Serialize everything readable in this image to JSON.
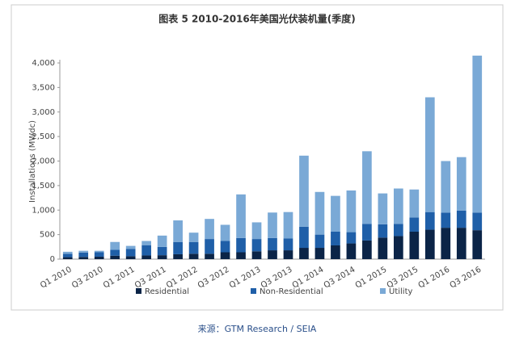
{
  "chart_data": {
    "type": "stacked_bar",
    "title": "图表 5  2010-2016年美国光伏装机量(季度)",
    "y_label": "Installations (MWdc)",
    "source": "来源：GTM Research / SEIA",
    "categories": [
      "Q1 2010",
      null,
      "Q3 2010",
      null,
      "Q1 2011",
      null,
      "Q3 2011",
      null,
      "Q1 2012",
      null,
      "Q3 2012",
      null,
      "Q1 2013",
      null,
      "Q3 2013",
      null,
      "Q1 2014",
      null,
      "Q3 2014",
      null,
      "Q1 2015",
      null,
      "Q3 2015",
      null,
      "Q1 2016",
      null,
      "Q3 2016"
    ],
    "series": [
      {
        "name": "Residential",
        "color": "#0b2447",
        "values": [
          40,
          45,
          50,
          70,
          60,
          75,
          80,
          100,
          110,
          110,
          140,
          140,
          160,
          180,
          180,
          230,
          230,
          280,
          320,
          380,
          440,
          470,
          560,
          600,
          640,
          640,
          590
        ]
      },
      {
        "name": "Non-Residential",
        "color": "#1f5fa8",
        "values": [
          70,
          90,
          90,
          120,
          150,
          210,
          170,
          250,
          240,
          300,
          230,
          290,
          250,
          250,
          240,
          430,
          270,
          280,
          230,
          340,
          270,
          250,
          290,
          360,
          310,
          350,
          360
        ]
      },
      {
        "name": "Utility",
        "color": "#7aa9d6",
        "values": [
          40,
          35,
          30,
          160,
          60,
          85,
          230,
          440,
          190,
          410,
          330,
          890,
          340,
          520,
          540,
          1450,
          870,
          730,
          850,
          1480,
          630,
          720,
          570,
          2340,
          1050,
          1090,
          3200
        ]
      }
    ],
    "ylim": [
      0,
      4000
    ],
    "yticks": [
      0,
      500,
      {
        "value": 1000,
        "label": "1,000"
      },
      {
        "value": 1500,
        "label": "1,500"
      },
      {
        "value": 2000,
        "label": "2,000"
      },
      {
        "value": 2500,
        "label": "2,500"
      },
      {
        "value": 3000,
        "label": "3,000"
      },
      {
        "value": 3500,
        "label": "3,500"
      },
      {
        "value": 4000,
        "label": "4,000"
      }
    ],
    "grid": false
  }
}
